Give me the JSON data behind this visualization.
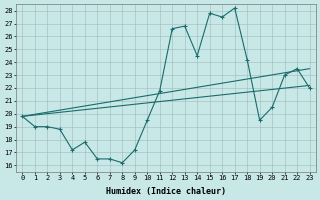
{
  "xlabel": "Humidex (Indice chaleur)",
  "bg_color": "#c8e8e8",
  "grid_color": "#b0c8c8",
  "line_color": "#1a6b6b",
  "xlim": [
    -0.5,
    23.5
  ],
  "ylim": [
    15.5,
    28.5
  ],
  "yticks": [
    16,
    17,
    18,
    19,
    20,
    21,
    22,
    23,
    24,
    25,
    26,
    27,
    28
  ],
  "xticks": [
    0,
    1,
    2,
    3,
    4,
    5,
    6,
    7,
    8,
    9,
    10,
    11,
    12,
    13,
    14,
    15,
    16,
    17,
    18,
    19,
    20,
    21,
    22,
    23
  ],
  "line1_x": [
    0,
    1,
    2,
    3,
    4,
    5,
    6,
    7,
    8,
    9,
    10,
    11,
    12,
    13,
    14,
    15,
    16,
    17,
    18,
    19,
    20,
    21,
    22,
    23
  ],
  "line1_y": [
    19.8,
    19.0,
    19.0,
    18.8,
    17.2,
    17.8,
    16.5,
    16.5,
    16.2,
    17.2,
    19.5,
    21.8,
    26.6,
    26.8,
    24.5,
    27.8,
    27.5,
    28.2,
    24.2,
    19.5,
    20.5,
    23.0,
    23.5,
    22.0
  ],
  "line2_x": [
    0,
    23
  ],
  "line2_y": [
    19.8,
    22.2
  ],
  "line3_x": [
    0,
    23
  ],
  "line3_y": [
    19.8,
    23.5
  ]
}
